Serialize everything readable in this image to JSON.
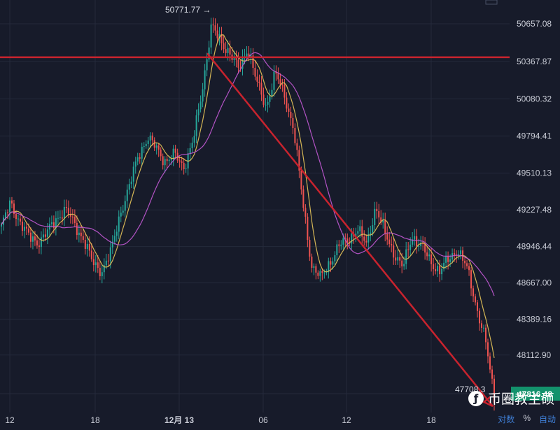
{
  "chart_data": {
    "type": "candlestick",
    "title": "",
    "x_ticks": [
      "12",
      "18",
      "12月 13",
      "06",
      "12",
      "18"
    ],
    "y_ticks": [
      50657.08,
      50367.87,
      50080.32,
      49794.41,
      49510.13,
      49227.48,
      48946.44,
      48667.0,
      48389.16,
      48112.9,
      47816.48
    ],
    "ylim": [
      47650,
      50780
    ],
    "last_price": "47816.48",
    "high_label": "50771.77",
    "low_label": "47708.3",
    "resistance_level": 50400,
    "trend_arrow": {
      "from_price": 50430,
      "to_price": 47720
    },
    "price_path": [
      49100,
      49280,
      49140,
      49020,
      48980,
      49050,
      49160,
      49230,
      49120,
      49000,
      48820,
      48760,
      48900,
      49200,
      49400,
      49650,
      49780,
      49700,
      49600,
      49650,
      49560,
      49750,
      50150,
      50640,
      50520,
      50440,
      50300,
      50480,
      50200,
      50020,
      50280,
      50110,
      49860,
      49300,
      48800,
      48700,
      48830,
      48950,
      49000,
      49080,
      48960,
      49250,
      49050,
      48900,
      48780,
      49030,
      48950,
      48830,
      48760,
      48840,
      48930,
      48780,
      48500,
      48240,
      47780
    ]
  },
  "colors": {
    "background": "#171b2a",
    "up": "#26a69a",
    "down": "#ef5350",
    "resistance": "#c8232e",
    "arrow": "#c8232e",
    "ma_fast": "#e8c75a",
    "ma_slow": "#c45ad6",
    "last_price_badge": "#13926c"
  },
  "watermark": "币圈教主硕",
  "controls": {
    "pair": "对数",
    "percent": "%",
    "auto": "自动"
  }
}
